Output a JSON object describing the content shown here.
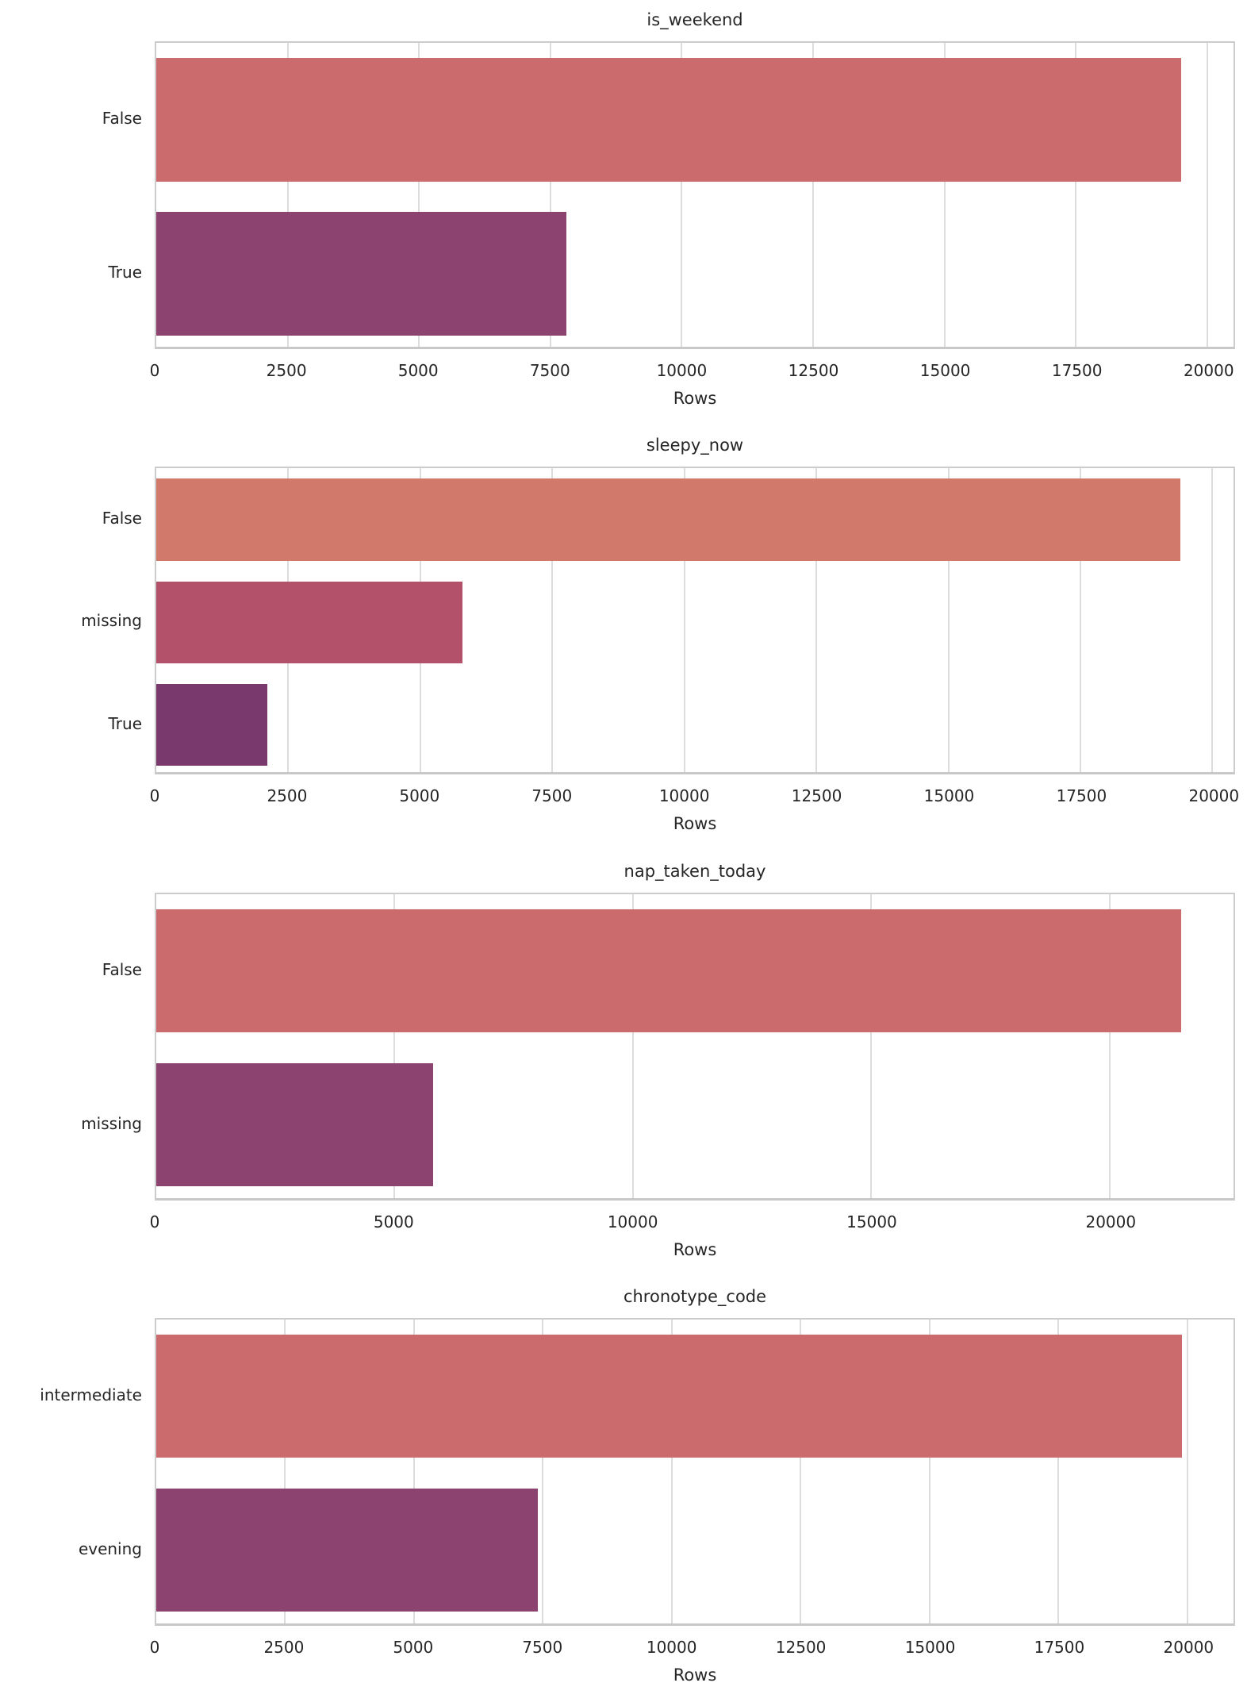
{
  "figure": {
    "background": "#ffffff",
    "text_color": "#262626",
    "grid_color": "#dcdcdc",
    "spine_color": "#cccccc",
    "xlabel": "Rows"
  },
  "chart_data": [
    {
      "type": "bar",
      "orientation": "horizontal",
      "title": "is_weekend",
      "xlabel": "Rows",
      "categories": [
        "False",
        "True"
      ],
      "values": [
        19500,
        7800
      ],
      "bar_colors": [
        "#cb6b6e",
        "#8c4370"
      ],
      "xlim": [
        0,
        20500
      ],
      "xticks": [
        0,
        2500,
        5000,
        7500,
        10000,
        12500,
        15000,
        17500,
        20000
      ],
      "grid": true,
      "legend": null
    },
    {
      "type": "bar",
      "orientation": "horizontal",
      "title": "sleepy_now",
      "xlabel": "Rows",
      "categories": [
        "False",
        "missing",
        "True"
      ],
      "values": [
        19400,
        5800,
        2100
      ],
      "bar_colors": [
        "#d1796b",
        "#b25169",
        "#7a396d"
      ],
      "xlim": [
        0,
        20400
      ],
      "xticks": [
        0,
        2500,
        5000,
        7500,
        10000,
        12500,
        15000,
        17500,
        20000
      ],
      "grid": true,
      "legend": null
    },
    {
      "type": "bar",
      "orientation": "horizontal",
      "title": "nap_taken_today",
      "xlabel": "Rows",
      "categories": [
        "False",
        "missing"
      ],
      "values": [
        21500,
        5800
      ],
      "bar_colors": [
        "#cb6b6e",
        "#8c4370"
      ],
      "xlim": [
        0,
        22600
      ],
      "xticks": [
        0,
        5000,
        10000,
        15000,
        20000
      ],
      "grid": true,
      "legend": null
    },
    {
      "type": "bar",
      "orientation": "horizontal",
      "title": "chronotype_code",
      "xlabel": "Rows",
      "categories": [
        "intermediate",
        "evening"
      ],
      "values": [
        19900,
        7400
      ],
      "bar_colors": [
        "#cb6b6e",
        "#8c4370"
      ],
      "xlim": [
        0,
        20900
      ],
      "xticks": [
        0,
        2500,
        5000,
        7500,
        10000,
        12500,
        15000,
        17500,
        20000
      ],
      "grid": true,
      "legend": null
    }
  ]
}
